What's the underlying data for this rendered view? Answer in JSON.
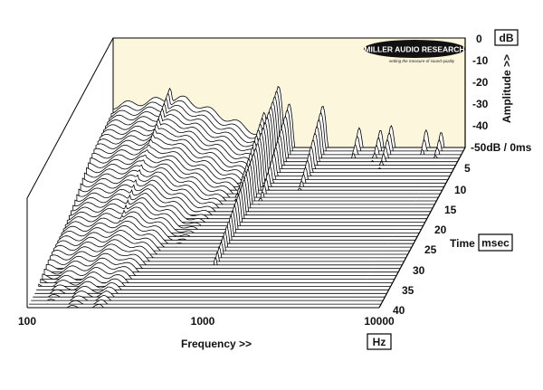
{
  "chart_data": {
    "type": "waterfall-3d",
    "brand": {
      "name": "MILLER AUDIO RESEARCH",
      "tagline": "setting the measure of sound quality"
    },
    "x_axis": {
      "label": "Frequency >>",
      "unit": "Hz",
      "scale": "log",
      "range": [
        100,
        10000
      ],
      "ticks": [
        "100",
        "1000",
        "10000"
      ]
    },
    "amplitude_axis": {
      "label": "Amplitude >>",
      "unit": "dB",
      "range": [
        -50,
        0
      ],
      "ticks": [
        "0",
        "-10",
        "-20",
        "-30",
        "-40",
        "-50dB / 0ms"
      ]
    },
    "time_axis": {
      "label": "Time",
      "unit": "msec",
      "range": [
        0,
        40
      ],
      "ticks": [
        "5",
        "10",
        "15",
        "20",
        "25",
        "30",
        "35",
        "40"
      ]
    },
    "resonances": [
      {
        "freq_hz": 210,
        "peak_db": -23,
        "decay_ms": 32
      },
      {
        "freq_hz": 340,
        "peak_db": -34,
        "decay_ms": 20
      },
      {
        "freq_hz": 720,
        "peak_db": -34,
        "decay_ms": 22
      },
      {
        "freq_hz": 870,
        "peak_db": -22,
        "decay_ms": 30
      },
      {
        "freq_hz": 1000,
        "peak_db": -30,
        "decay_ms": 18
      },
      {
        "freq_hz": 1550,
        "peak_db": -31,
        "decay_ms": 15
      },
      {
        "freq_hz": 2500,
        "peak_db": -41,
        "decay_ms": 10
      },
      {
        "freq_hz": 3300,
        "peak_db": -42,
        "decay_ms": 12
      },
      {
        "freq_hz": 3800,
        "peak_db": -40,
        "decay_ms": 14
      },
      {
        "freq_hz": 6000,
        "peak_db": -42,
        "decay_ms": 8
      },
      {
        "freq_hz": 7300,
        "peak_db": -43,
        "decay_ms": 12
      }
    ],
    "colors": {
      "floor": "#fbf6dc",
      "line": "#000000",
      "fill": "#ffffff"
    }
  }
}
